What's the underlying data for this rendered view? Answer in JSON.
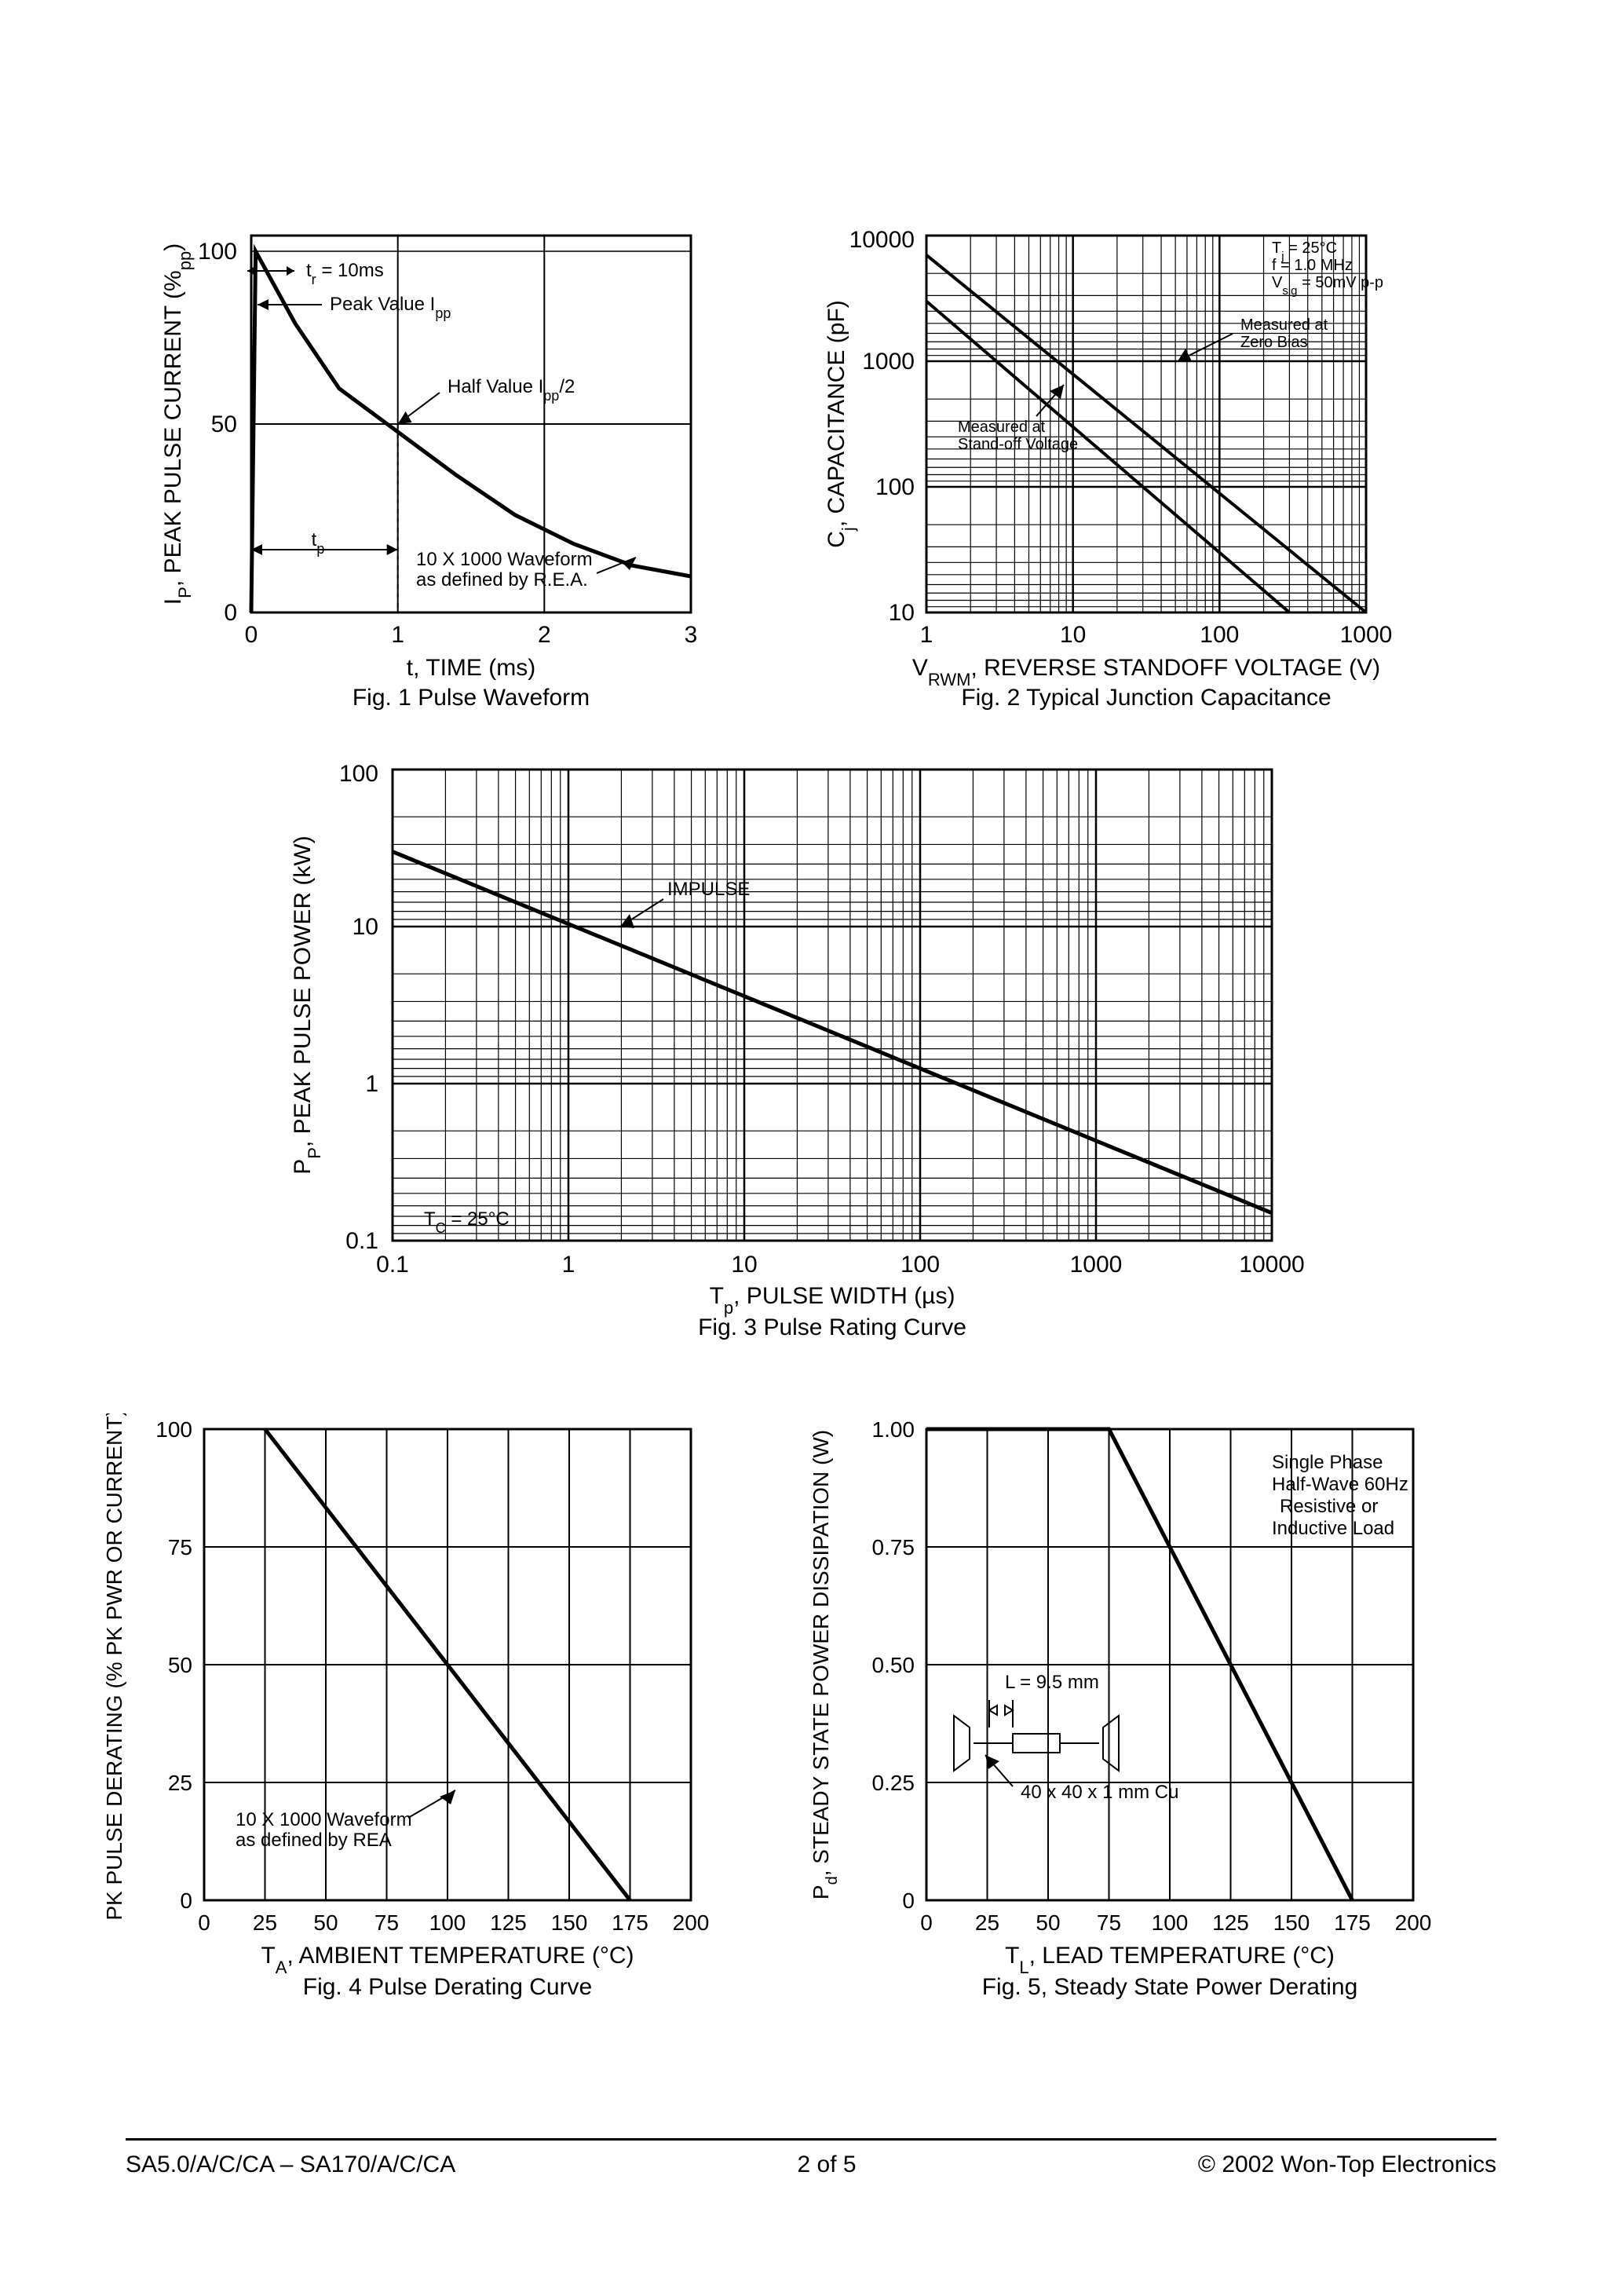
{
  "footer": {
    "left": "SA5.0/A/C/CA – SA170/A/C/CA",
    "center": "2 of 5",
    "right": "© 2002 Won-Top Electronics"
  },
  "fig1": {
    "caption": "Fig. 1  Pulse Waveform",
    "xlabel": "t, TIME (ms)",
    "ylabel": "I_P, PEAK PULSE CURRENT (%_pp)",
    "xticks": [
      0,
      1,
      2,
      3
    ],
    "yticks": [
      0,
      50,
      100
    ],
    "annotations": {
      "tr": "t_r = 10ms",
      "peak": "Peak Value I_pp",
      "half": "Half Value I_pp/2",
      "tp": "t_p",
      "wave": "10 X 1000 Waveform\nas defined by R.E.A."
    },
    "curve": [
      [
        0,
        0
      ],
      [
        0.03,
        100
      ],
      [
        0.3,
        80
      ],
      [
        0.6,
        62
      ],
      [
        1.0,
        50
      ],
      [
        1.4,
        38
      ],
      [
        1.8,
        27
      ],
      [
        2.2,
        19
      ],
      [
        2.6,
        13
      ],
      [
        3.0,
        10
      ]
    ],
    "stroke": "#000",
    "stroke_width": 4,
    "grid": "#000"
  },
  "fig2": {
    "caption": "Fig. 2 Typical Junction Capacitance",
    "xlabel": "V_RWM, REVERSE STANDOFF VOLTAGE (V)",
    "ylabel": "C_j, CAPACITANCE (pF)",
    "xlim": [
      1,
      1000
    ],
    "ylim": [
      10,
      10000
    ],
    "xticks": [
      1,
      10,
      100,
      1000
    ],
    "yticks": [
      10,
      100,
      1000,
      10000
    ],
    "conditions": "T_j = 25°C\nf = 1.0 MHz\nV_sig = 50mV p-p",
    "ann1": "Measured at\nZero Bias",
    "ann2": "Measured at\nStand-off Voltage",
    "line1": [
      [
        1,
        7000
      ],
      [
        1000,
        10
      ]
    ],
    "line2": [
      [
        1,
        3000
      ],
      [
        300,
        10
      ]
    ],
    "stroke": "#000",
    "stroke_width": 3,
    "grid": "#000"
  },
  "fig3": {
    "caption": "Fig. 3 Pulse Rating Curve",
    "xlabel": "T_p, PULSE WIDTH (µs)",
    "ylabel": "P_P, PEAK PULSE POWER (kW)",
    "xlim": [
      0.1,
      10000
    ],
    "ylim": [
      0.1,
      100
    ],
    "xticks": [
      0.1,
      1.0,
      10,
      100,
      1000,
      10000
    ],
    "yticks": [
      0.1,
      1.0,
      10,
      100
    ],
    "ann_impulse": "IMPULSE",
    "ann_tc": "T_C = 25°C",
    "line": [
      [
        0.1,
        30
      ],
      [
        10000,
        0.15
      ]
    ],
    "stroke": "#000",
    "stroke_width": 4,
    "grid": "#000"
  },
  "fig4": {
    "caption": "Fig. 4  Pulse Derating Curve",
    "xlabel": "T_A, AMBIENT TEMPERATURE (°C)",
    "ylabel": "PK PULSE DERATING (% PK PWR OR CURRENT)",
    "xlim": [
      0,
      200
    ],
    "ylim": [
      0,
      100
    ],
    "xticks": [
      0,
      25,
      50,
      75,
      100,
      125,
      150,
      175,
      200
    ],
    "yticks": [
      0,
      25,
      50,
      75,
      100
    ],
    "ann": "10 X 1000 Waveform\nas defined by REA",
    "line": [
      [
        25,
        100
      ],
      [
        175,
        0
      ]
    ],
    "stroke": "#000",
    "stroke_width": 4,
    "grid": "#000"
  },
  "fig5": {
    "caption": "Fig. 5, Steady State Power Derating",
    "xlabel": "T_L, LEAD TEMPERATURE (°C)",
    "ylabel": "P_d, STEADY STATE POWER DISSIPATION (W)",
    "xlim": [
      0,
      200
    ],
    "ylim": [
      0,
      1.0
    ],
    "xticks": [
      0,
      25,
      50,
      75,
      100,
      125,
      150,
      175,
      200
    ],
    "yticks": [
      "0",
      "0.25",
      "0.50",
      "0.75",
      "1.00"
    ],
    "ann_top": "Single Phase\nHalf-Wave 60Hz\nResistive or\nInductive Load",
    "ann_L": "L = 9.5 mm",
    "ann_cu": "40 x 40 x 1 mm Cu",
    "line": [
      [
        0,
        1.0
      ],
      [
        75,
        1.0
      ],
      [
        175,
        0
      ]
    ],
    "stroke": "#000",
    "stroke_width": 4,
    "grid": "#000"
  }
}
